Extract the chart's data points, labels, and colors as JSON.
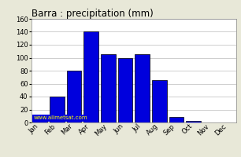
{
  "title": "Barra : precipitation (mm)",
  "months": [
    "Jan",
    "Feb",
    "Mar",
    "Apr",
    "May",
    "Jun",
    "Jul",
    "Aug",
    "Sep",
    "Oct",
    "Nov",
    "Dec"
  ],
  "values": [
    10,
    40,
    80,
    140,
    105,
    100,
    105,
    65,
    8,
    3,
    0,
    0
  ],
  "bar_color": "#0000dd",
  "bar_edge_color": "#000000",
  "ylim": [
    0,
    160
  ],
  "yticks": [
    0,
    20,
    40,
    60,
    80,
    100,
    120,
    140,
    160
  ],
  "grid_color": "#bbbbbb",
  "plot_bg_color": "#ffffff",
  "fig_bg_color": "#e8e8d8",
  "title_fontsize": 8.5,
  "tick_fontsize": 6,
  "watermark": "www.allmetsat.com",
  "watermark_color": "#ffff00",
  "watermark_bg_color": "#0000dd",
  "watermark_fontsize": 5
}
